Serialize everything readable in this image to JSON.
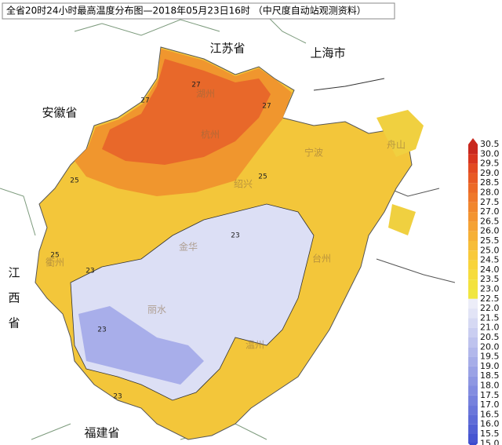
{
  "title": "全省20时24小时最高温度分布图—2018年05月23日16时 （中尺度自动站观测资料）",
  "provinces": [
    "江苏省",
    "上海市",
    "安徽省",
    "江",
    "西",
    "省",
    "福建省"
  ],
  "cities": [
    "湖州",
    "杭州",
    "绍兴",
    "宁波",
    "舟山",
    "衢州",
    "金华",
    "台州",
    "丽水",
    "温州"
  ],
  "contour_labels": [
    "27",
    "27",
    "27",
    "25",
    "25",
    "25",
    "23",
    "23",
    "23",
    "23"
  ],
  "legend": {
    "labels": [
      "30.5",
      "30.0",
      "29.5",
      "29.0",
      "28.5",
      "28.0",
      "27.5",
      "27.0",
      "26.5",
      "26.0",
      "25.5",
      "25.0",
      "24.5",
      "24.0",
      "23.5",
      "23.0",
      "22.5",
      "22.0",
      "21.5",
      "21.0",
      "20.5",
      "20.0",
      "19.5",
      "19.0",
      "18.5",
      "18.0",
      "17.5",
      "17.0",
      "16.5",
      "16.0",
      "15.5",
      "15.0"
    ],
    "colors": [
      "#c8281e",
      "#d8351f",
      "#e34a22",
      "#e85a25",
      "#ec6a28",
      "#ef782b",
      "#f1862e",
      "#f39431",
      "#f5a234",
      "#f6b036",
      "#f7bd38",
      "#f8c93a",
      "#f8d43c",
      "#f6dc3d",
      "#f3e23e",
      "#f0e640",
      "#ecedf8",
      "#e2e4f6",
      "#d6d9f3",
      "#cacef1",
      "#bec3ee",
      "#b2b8eb",
      "#a6ade8",
      "#9aa2e5",
      "#8e97e2",
      "#828ce0",
      "#7681dd",
      "#6a76da",
      "#5e6bd7",
      "#5260d4",
      "#4655d1",
      "#3a4ace"
    ]
  }
}
